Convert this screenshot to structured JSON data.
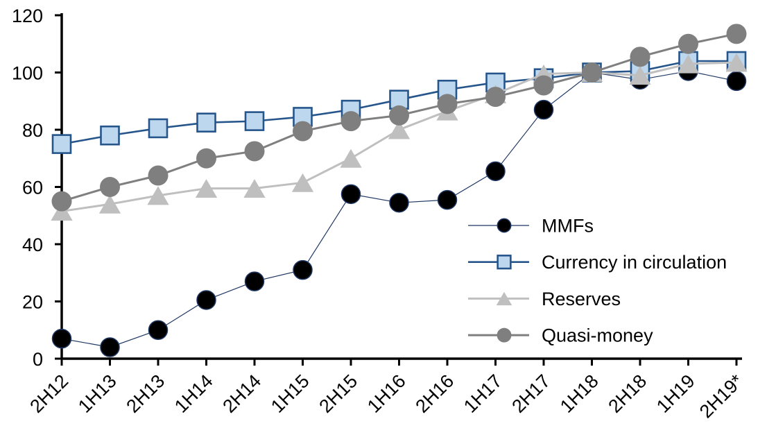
{
  "chart_data": {
    "type": "line",
    "title": "",
    "xlabel": "",
    "ylabel": "",
    "grid": false,
    "legend_position": "center-right-inside",
    "ylim": [
      0,
      120
    ],
    "yticks": [
      0,
      20,
      40,
      60,
      80,
      100,
      120
    ],
    "categories": [
      "2H12",
      "1H13",
      "2H13",
      "1H14",
      "2H14",
      "1H15",
      "2H15",
      "1H16",
      "2H16",
      "1H17",
      "2H17",
      "1H18",
      "2H18",
      "1H19",
      "2H19*"
    ],
    "series": [
      {
        "name": "MMFs",
        "marker": "circle",
        "marker_size": 27,
        "marker_fill": "#000000",
        "marker_stroke": "#1F3864",
        "marker_stroke_width": 1.5,
        "color": "#1F3864",
        "line_width": 1.2,
        "values": [
          7,
          4,
          10,
          20.5,
          27,
          31,
          57.5,
          54.5,
          55.5,
          65.5,
          87,
          100,
          97.5,
          100.5,
          97
        ]
      },
      {
        "name": "Currency in circulation",
        "marker": "square",
        "marker_size": 26,
        "marker_fill": "#BDD7EE",
        "marker_stroke": "#25558B",
        "marker_stroke_width": 2.6,
        "color": "#25558B",
        "line_width": 2.6,
        "values": [
          75,
          78,
          80.5,
          82.5,
          83,
          84.5,
          87,
          90.5,
          94,
          96.5,
          98,
          100,
          100.5,
          104,
          104
        ]
      },
      {
        "name": "Reserves",
        "marker": "triangle",
        "marker_size": 29,
        "marker_fill": "#BFBFBF",
        "marker_stroke": "none",
        "marker_stroke_width": 0,
        "color": "#BFBFBF",
        "line_width": 3,
        "values": [
          51.5,
          54,
          57,
          59.5,
          59.5,
          61.5,
          70,
          80,
          86.5,
          92.5,
          99.5,
          100,
          99,
          103,
          103.5
        ]
      },
      {
        "name": "Quasi-money",
        "marker": "circle",
        "marker_size": 29,
        "marker_fill": "#7F7F7F",
        "marker_stroke": "none",
        "marker_stroke_width": 0,
        "color": "#7F7F7F",
        "line_width": 3,
        "values": [
          55,
          60,
          64,
          70,
          72.5,
          79.5,
          83,
          85,
          89,
          91.5,
          95.5,
          100,
          105.5,
          110,
          113.5
        ]
      }
    ],
    "axis_color": "#000000",
    "background_color": "#FFFFFF"
  }
}
